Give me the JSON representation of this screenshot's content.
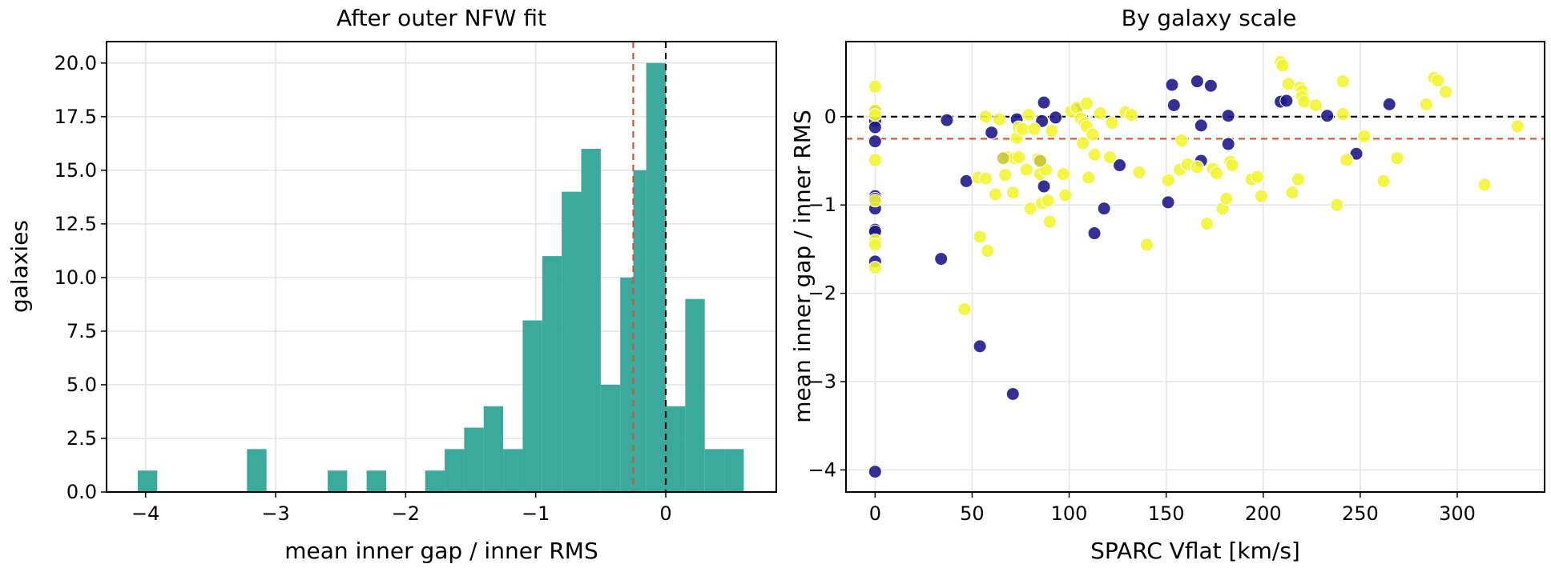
{
  "chart_data": [
    {
      "type": "bar",
      "title": "After outer NFW fit",
      "xlabel": "mean inner gap / inner RMS",
      "ylabel": "galaxies",
      "xlim": [
        -4.3,
        0.85
      ],
      "ylim": [
        0,
        21
      ],
      "xticks": [
        -4,
        -3,
        -2,
        -1,
        0
      ],
      "xtick_labels": [
        "−4",
        "−3",
        "−2",
        "−1",
        "0"
      ],
      "yticks": [
        0,
        2.5,
        5,
        7.5,
        10,
        12.5,
        15,
        17.5,
        20
      ],
      "ytick_labels": [
        "0.0",
        "2.5",
        "5.0",
        "7.5",
        "10.0",
        "12.5",
        "15.0",
        "17.5",
        "20.0"
      ],
      "grid": true,
      "bar_color": "#3ba99c",
      "bins": {
        "left_edges": [
          -4.06,
          -3.22,
          -2.6,
          -2.3,
          -1.85,
          -1.7,
          -1.55,
          -1.4,
          -1.25,
          -1.1,
          -0.95,
          -0.8,
          -0.65,
          -0.5,
          -0.35,
          -0.25,
          -0.15,
          0.0,
          0.15,
          0.3,
          0.45
        ],
        "right_edges": [
          -3.91,
          -3.07,
          -2.45,
          -2.15,
          -1.7,
          -1.55,
          -1.4,
          -1.25,
          -1.1,
          -0.95,
          -0.8,
          -0.65,
          -0.5,
          -0.35,
          -0.25,
          -0.15,
          0.0,
          0.15,
          0.3,
          0.45,
          0.6
        ],
        "counts": [
          1,
          2,
          1,
          1,
          1,
          2,
          3,
          4,
          2,
          8,
          11,
          14,
          16,
          5,
          10,
          15,
          20,
          4,
          9,
          2,
          2
        ]
      },
      "reference_lines": [
        {
          "x": 0,
          "color": "#000000",
          "style": "dashed"
        },
        {
          "x": -0.25,
          "color": "#d9512c",
          "style": "dashed"
        }
      ]
    },
    {
      "type": "scatter",
      "title": "By galaxy scale",
      "xlabel": "SPARC Vflat [km/s]",
      "ylabel": "mean inner gap / inner RMS",
      "xlim": [
        -15,
        345
      ],
      "ylim": [
        -4.25,
        0.85
      ],
      "xticks": [
        0,
        50,
        100,
        150,
        200,
        250,
        300
      ],
      "xtick_labels": [
        "0",
        "50",
        "100",
        "150",
        "200",
        "250",
        "300"
      ],
      "yticks": [
        -4,
        -3,
        -2,
        -1,
        0
      ],
      "ytick_labels": [
        "−4",
        "−3",
        "−2",
        "−1",
        "0"
      ],
      "grid": true,
      "colors": {
        "dark": "#1f1a8a",
        "light": "#f2f531",
        "mid": "#c9c93a"
      },
      "reference_lines": [
        {
          "y": 0,
          "color": "#000000",
          "style": "dashed"
        },
        {
          "y": -0.25,
          "color": "#d9512c",
          "style": "dashed"
        }
      ],
      "series": [
        {
          "x": [
            0,
            0,
            0,
            0,
            0,
            0,
            0,
            0,
            0,
            0,
            0,
            34,
            37,
            47,
            54,
            60,
            71,
            73,
            85,
            87,
            86,
            87,
            93,
            104,
            113,
            118,
            126,
            151,
            153,
            154,
            166,
            168,
            168,
            173,
            182,
            182,
            209,
            212,
            233,
            248,
            265
          ],
          "y": [
            0.06,
            -0.05,
            -0.12,
            -0.28,
            -0.9,
            -0.93,
            -1.04,
            -1.28,
            -1.3,
            -1.64,
            -4.02,
            -1.61,
            -0.04,
            -0.73,
            -2.6,
            -0.18,
            -3.14,
            -0.03,
            -0.5,
            -0.79,
            -0.05,
            0.16,
            -0.01,
            0.08,
            -1.32,
            -1.04,
            -0.55,
            -0.97,
            0.36,
            0.13,
            0.4,
            -0.1,
            -0.5,
            0.35,
            -0.31,
            0.01,
            0.17,
            0.18,
            0.01,
            -0.42,
            0.14
          ],
          "color": "#1f1a8a"
        },
        {
          "x": [
            0,
            0,
            0,
            0,
            0,
            0,
            0,
            0,
            46,
            53,
            54,
            57,
            57,
            58,
            62,
            64,
            67,
            68,
            71,
            72,
            73,
            74,
            74,
            76,
            78,
            79,
            80,
            82,
            84,
            85,
            86,
            88,
            89,
            90,
            91,
            97,
            98,
            101,
            104,
            106,
            107,
            108,
            109,
            109,
            110,
            112,
            113,
            116,
            121,
            122,
            129,
            132,
            136,
            140,
            151,
            157,
            158,
            161,
            166,
            171,
            174,
            176,
            179,
            181,
            183,
            184,
            194,
            197,
            199,
            209,
            210,
            213,
            215,
            218,
            219,
            220,
            220,
            221,
            227,
            238,
            241,
            241,
            243,
            252,
            262,
            269,
            284,
            288,
            290,
            294,
            314,
            331
          ],
          "y": [
            0.34,
            0.07,
            0.02,
            -0.49,
            -0.95,
            -1.4,
            -1.45,
            -1.71,
            -2.18,
            -0.69,
            -1.36,
            0.0,
            -0.7,
            -1.52,
            -0.88,
            -0.03,
            -0.66,
            -0.46,
            -0.86,
            -0.47,
            -0.24,
            -0.46,
            -0.12,
            -0.14,
            -0.6,
            0.02,
            -1.04,
            -0.14,
            -0.48,
            -0.65,
            -0.98,
            -0.6,
            -0.95,
            -1.19,
            -0.16,
            -0.65,
            -0.89,
            0.06,
            0.1,
            -0.02,
            -0.3,
            -0.07,
            0.15,
            -0.11,
            -0.69,
            -0.2,
            -0.43,
            0.04,
            -0.46,
            -0.07,
            0.05,
            0.02,
            -0.63,
            -1.45,
            -0.72,
            -0.6,
            -0.27,
            -0.54,
            -0.57,
            -1.21,
            -0.59,
            -0.64,
            -1.04,
            -0.93,
            -0.51,
            -0.55,
            -0.71,
            -0.68,
            -0.9,
            0.62,
            0.58,
            0.37,
            -0.86,
            -0.71,
            0.33,
            0.29,
            0.23,
            0.17,
            0.13,
            -1.0,
            0.4,
            0.03,
            -0.49,
            -0.22,
            -0.73,
            -0.47,
            0.14,
            0.44,
            0.41,
            0.28,
            -0.77,
            -0.11
          ],
          "color": "#f2f531"
        },
        {
          "x": [
            66,
            85
          ],
          "y": [
            -0.47,
            -0.5
          ],
          "color": "#c9c93a"
        }
      ]
    }
  ]
}
